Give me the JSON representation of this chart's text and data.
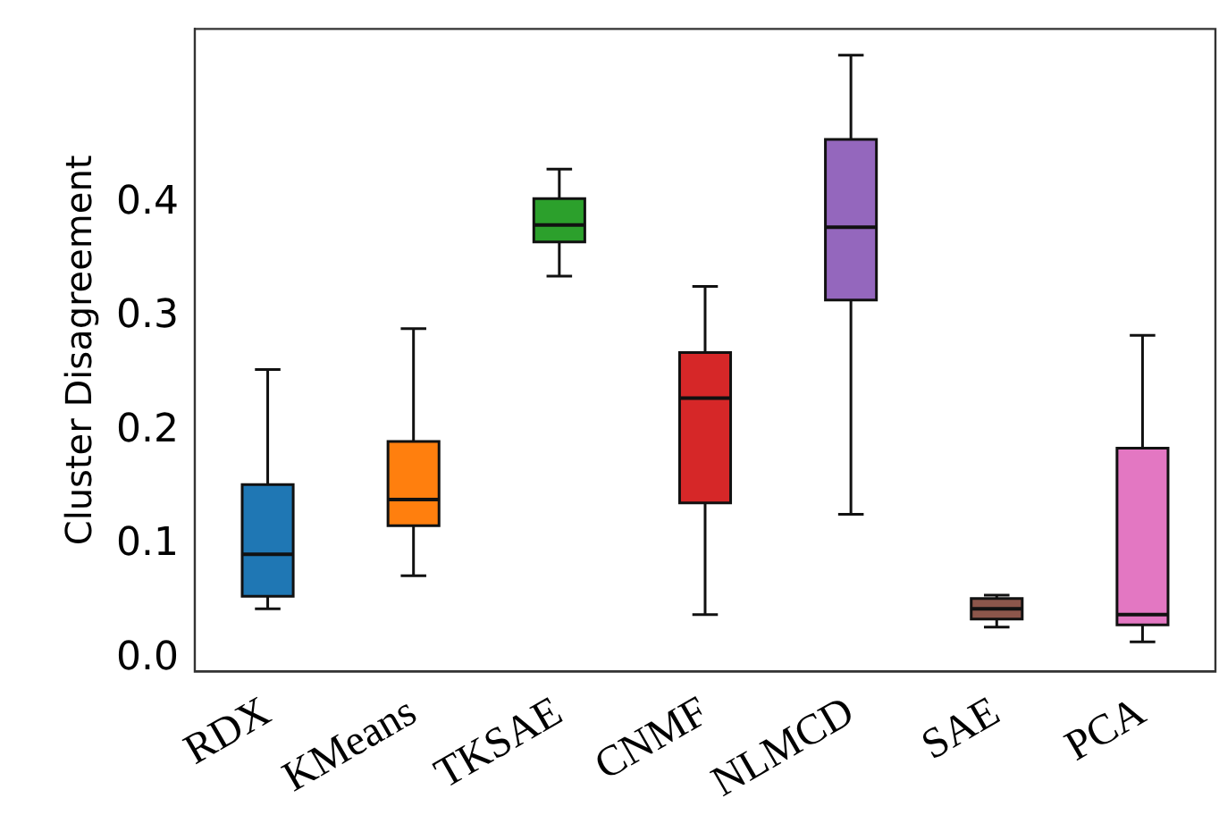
{
  "chart_data": {
    "type": "box",
    "ylabel": "Cluster Disagreement",
    "categories": [
      "RDX",
      "KMeans",
      "TKSAE",
      "CNMF",
      "NLMCD",
      "SAE",
      "PCA"
    ],
    "colors": [
      "#1f77b4",
      "#ff7f0e",
      "#2ca02c",
      "#d62728",
      "#9467bd",
      "#8c564b",
      "#e377c2"
    ],
    "boxes": [
      {
        "low": 0.044,
        "q1": 0.055,
        "median": 0.092,
        "q3": 0.153,
        "high": 0.254
      },
      {
        "low": 0.073,
        "q1": 0.117,
        "median": 0.14,
        "q3": 0.191,
        "high": 0.29
      },
      {
        "low": 0.336,
        "q1": 0.366,
        "median": 0.381,
        "q3": 0.404,
        "high": 0.43
      },
      {
        "low": 0.039,
        "q1": 0.137,
        "median": 0.229,
        "q3": 0.269,
        "high": 0.327
      },
      {
        "low": 0.127,
        "q1": 0.315,
        "median": 0.379,
        "q3": 0.456,
        "high": 0.53
      },
      {
        "low": 0.028,
        "q1": 0.035,
        "median": 0.044,
        "q3": 0.053,
        "high": 0.056
      },
      {
        "low": 0.015,
        "q1": 0.03,
        "median": 0.039,
        "q3": 0.185,
        "high": 0.284
      }
    ],
    "ylim": [
      -0.011,
      0.553
    ],
    "yticks": [
      {
        "value": 0,
        "label": "0.0"
      },
      {
        "value": 0.1,
        "label": "0.1"
      },
      {
        "value": 0.2,
        "label": "0.2"
      },
      {
        "value": 0.3,
        "label": "0.3"
      },
      {
        "value": 0.4,
        "label": "0.4"
      }
    ]
  }
}
